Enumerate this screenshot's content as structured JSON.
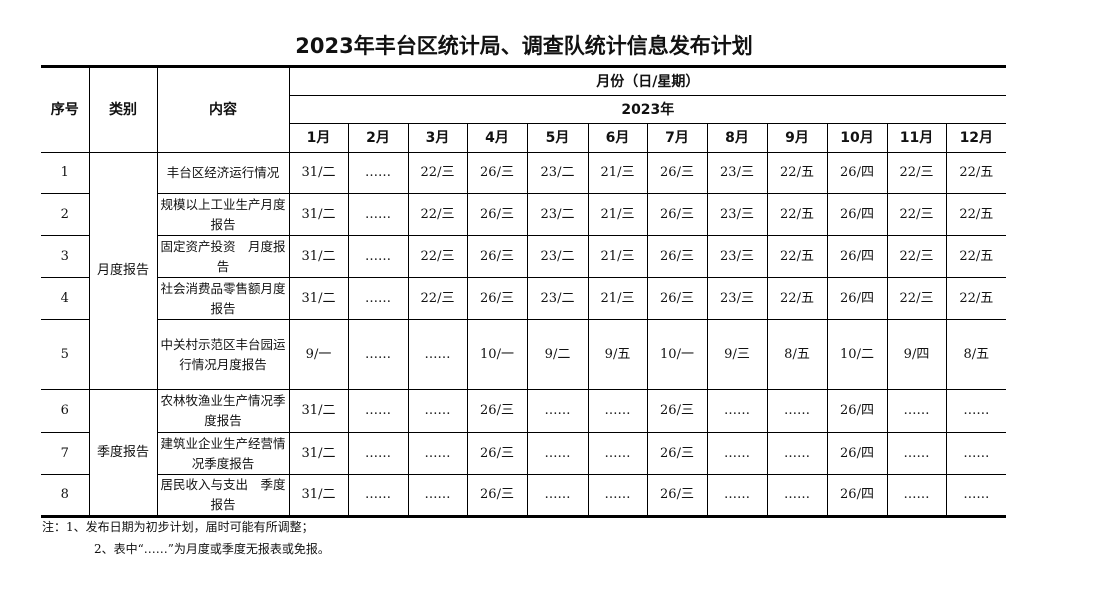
{
  "title": "2023年丰台区统计局、调查队统计信息发布计划",
  "header": {
    "seq": "序号",
    "category": "类别",
    "content": "内容",
    "month_group": "月份（日/星期）",
    "year": "2023年",
    "months": [
      "1月",
      "2月",
      "3月",
      "4月",
      "5月",
      "6月",
      "7月",
      "8月",
      "9月",
      "10月",
      "11月",
      "12月"
    ]
  },
  "groups": [
    {
      "category": "月度报告",
      "rows": [
        {
          "seq": "1",
          "content": "丰台区经济运行情况",
          "dates": [
            "31/二",
            "……",
            "22/三",
            "26/三",
            "23/二",
            "21/三",
            "26/三",
            "23/三",
            "22/五",
            "26/四",
            "22/三",
            "22/五"
          ]
        },
        {
          "seq": "2",
          "content": "规模以上工业生产月度报告",
          "dates": [
            "31/二",
            "……",
            "22/三",
            "26/三",
            "23/二",
            "21/三",
            "26/三",
            "23/三",
            "22/五",
            "26/四",
            "22/三",
            "22/五"
          ]
        },
        {
          "seq": "3",
          "content": "固定资产投资　月度报告",
          "dates": [
            "31/二",
            "……",
            "22/三",
            "26/三",
            "23/二",
            "21/三",
            "26/三",
            "23/三",
            "22/五",
            "26/四",
            "22/三",
            "22/五"
          ]
        },
        {
          "seq": "4",
          "content": "社会消费品零售额月度报告",
          "dates": [
            "31/二",
            "……",
            "22/三",
            "26/三",
            "23/二",
            "21/三",
            "26/三",
            "23/三",
            "22/五",
            "26/四",
            "22/三",
            "22/五"
          ]
        },
        {
          "seq": "5",
          "content": "中关村示范区丰台园运行情况月度报告",
          "dates": [
            "9/一",
            "……",
            "……",
            "10/一",
            "9/二",
            "9/五",
            "10/一",
            "9/三",
            "8/五",
            "10/二",
            "9/四",
            "8/五"
          ]
        }
      ]
    },
    {
      "category": "季度报告",
      "rows": [
        {
          "seq": "6",
          "content": "农林牧渔业生产情况季度报告",
          "dates": [
            "31/二",
            "……",
            "……",
            "26/三",
            "……",
            "……",
            "26/三",
            "……",
            "……",
            "26/四",
            "……",
            "……"
          ]
        },
        {
          "seq": "7",
          "content": "建筑业企业生产经营情况季度报告",
          "dates": [
            "31/二",
            "……",
            "……",
            "26/三",
            "……",
            "……",
            "26/三",
            "……",
            "……",
            "26/四",
            "……",
            "……"
          ]
        },
        {
          "seq": "8",
          "content": "居民收入与支出　季度报告",
          "dates": [
            "31/二",
            "……",
            "……",
            "26/三",
            "……",
            "……",
            "26/三",
            "……",
            "……",
            "26/四",
            "……",
            "……"
          ]
        }
      ]
    }
  ],
  "notes": [
    "注：1、发布日期为初步计划，届时可能有所调整；",
    "2、表中“……”为月度或季度无报表或免报。"
  ]
}
